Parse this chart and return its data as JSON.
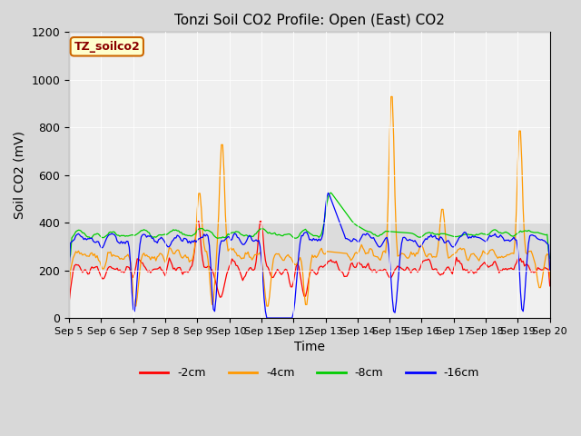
{
  "title": "Tonzi Soil CO2 Profile: Open (East) CO2",
  "ylabel": "Soil CO2 (mV)",
  "xlabel": "Time",
  "ylim": [
    0,
    1200
  ],
  "xlim": [
    0,
    360
  ],
  "xtick_labels": [
    "Sep 5",
    "Sep 6",
    "Sep 7",
    "Sep 8",
    "Sep 9",
    "Sep 10",
    "Sep 11",
    "Sep 12",
    "Sep 13",
    "Sep 14",
    "Sep 15",
    "Sep 16",
    "Sep 17",
    "Sep 18",
    "Sep 19",
    "Sep 20"
  ],
  "xtick_positions": [
    0,
    24,
    48,
    72,
    96,
    120,
    144,
    168,
    192,
    216,
    240,
    264,
    288,
    312,
    336,
    360
  ],
  "shaded_region_low": 200,
  "shaded_region_high": 400,
  "label_text": "TZ_soilco2",
  "legend_labels": [
    "-2cm",
    "-4cm",
    "-8cm",
    "-16cm"
  ],
  "line_colors": [
    "#ff0000",
    "#ff9900",
    "#00cc00",
    "#0000ff"
  ],
  "fig_bg": "#d8d8d8",
  "plot_bg": "#f0f0f0",
  "shade_color": "#d0d0d0",
  "grid_color": "#ffffff",
  "label_fg": "#8b0000",
  "label_bg": "#ffffcc",
  "label_edge": "#cc6600"
}
